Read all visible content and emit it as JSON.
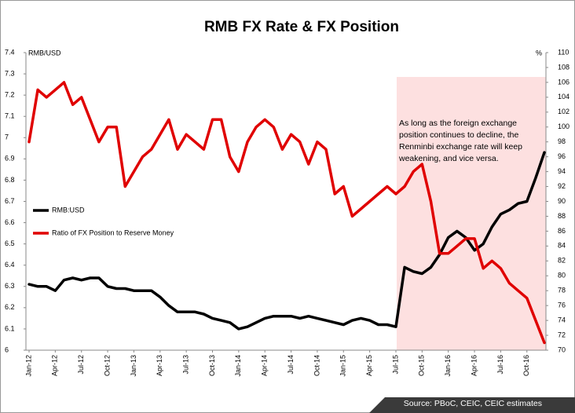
{
  "chart_data": {
    "type": "line",
    "title": "RMB FX Rate & FX Position",
    "y_label": "RMB/USD",
    "y2_label": "%",
    "categories": [
      "Jan-12",
      null,
      null,
      "Apr-12",
      null,
      null,
      "Jul-12",
      null,
      null,
      "Oct-12",
      null,
      null,
      "Jan-13",
      null,
      null,
      "Apr-13",
      null,
      null,
      "Jul-13",
      null,
      null,
      "Oct-13",
      null,
      null,
      "Jan-14",
      null,
      null,
      "Apr-14",
      null,
      null,
      "Jul-14",
      null,
      null,
      "Oct-14",
      null,
      null,
      "Jan-15",
      null,
      null,
      "Apr-15",
      null,
      null,
      "Jul-15",
      null,
      null,
      "Oct-15",
      null,
      null,
      "Jan-16",
      null,
      null,
      "Apr-16",
      null,
      null,
      "Jul-16",
      null,
      null,
      "Oct-16",
      null,
      null
    ],
    "series": [
      {
        "name": "RMB:USD",
        "color": "#000000",
        "axis": "y",
        "values": [
          6.31,
          6.3,
          6.3,
          6.28,
          6.33,
          6.34,
          6.33,
          6.34,
          6.34,
          6.3,
          6.29,
          6.29,
          6.28,
          6.28,
          6.28,
          6.25,
          6.21,
          6.18,
          6.18,
          6.18,
          6.17,
          6.15,
          6.14,
          6.13,
          6.1,
          6.11,
          6.13,
          6.15,
          6.16,
          6.16,
          6.16,
          6.15,
          6.16,
          6.15,
          6.14,
          6.13,
          6.12,
          6.14,
          6.15,
          6.14,
          6.12,
          6.12,
          6.11,
          6.39,
          6.37,
          6.36,
          6.39,
          6.45,
          6.53,
          6.56,
          6.53,
          6.47,
          6.5,
          6.58,
          6.64,
          6.66,
          6.69,
          6.7,
          6.81,
          6.93
        ]
      },
      {
        "name": "Ratio of FX Position to Reserve Money",
        "color": "#e00000",
        "axis": "y2",
        "values": [
          98,
          105,
          104,
          105,
          106,
          103,
          104,
          101,
          98,
          100,
          100,
          92,
          94,
          96,
          97,
          99,
          101,
          97,
          99,
          98,
          97,
          101,
          101,
          96,
          94,
          98,
          100,
          101,
          100,
          97,
          99,
          98,
          95,
          98,
          97,
          91,
          92,
          88,
          89,
          90,
          91,
          92,
          91,
          92,
          94,
          95,
          90,
          83,
          83,
          84,
          85,
          85,
          81,
          82,
          81,
          79,
          78,
          77,
          74,
          71
        ]
      }
    ],
    "ylim": [
      6,
      7.4
    ],
    "yticks": [
      6,
      6.1,
      6.2,
      6.3,
      6.4,
      6.5,
      6.6,
      6.7,
      6.8,
      6.9,
      7,
      7.1,
      7.2,
      7.3,
      7.4
    ],
    "y2lim": [
      70,
      110
    ],
    "y2ticks": [
      70,
      72,
      74,
      76,
      78,
      80,
      82,
      84,
      86,
      88,
      90,
      92,
      94,
      96,
      98,
      100,
      102,
      104,
      106,
      108,
      110
    ],
    "annotation": [
      "As long as the foreign exchange",
      "position continues to decline, the",
      "Renminbi exchange rate will keep",
      "weakening, and vice versa."
    ],
    "source": "Source: PBoC, CEIC, CEIC estimates"
  }
}
